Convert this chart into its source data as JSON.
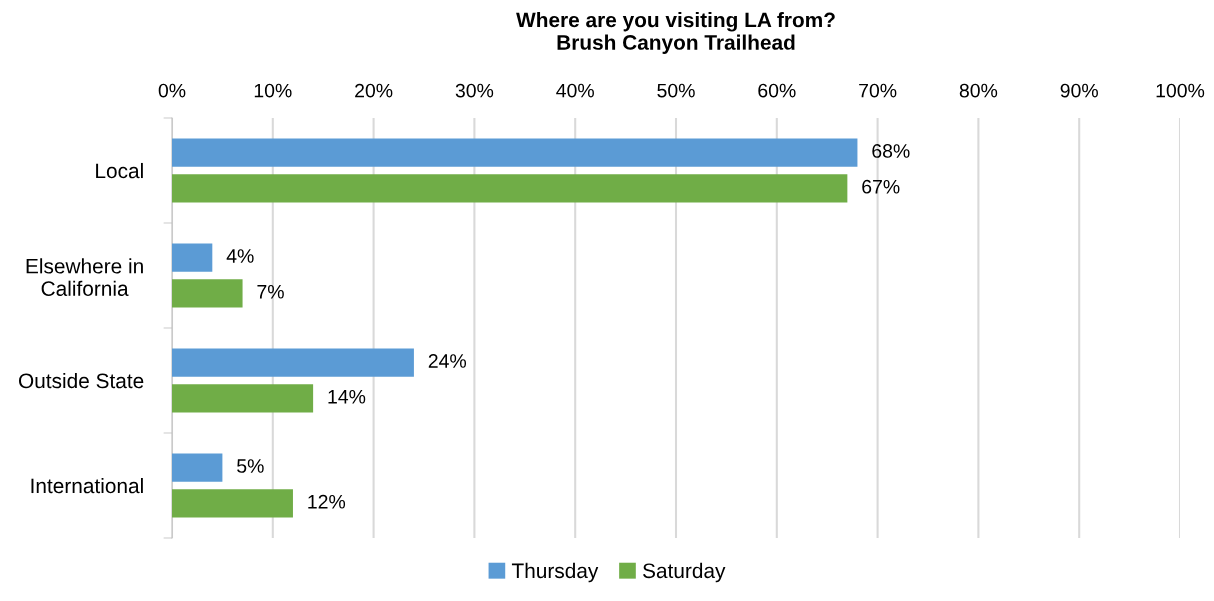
{
  "chart_data": {
    "type": "bar",
    "orientation": "horizontal",
    "title": "Where are you visiting LA from?",
    "subtitle": "Brush Canyon Trailhead",
    "categories": [
      "Local",
      "Elsewhere in California",
      "Outside State",
      "International"
    ],
    "series": [
      {
        "name": "Thursday",
        "color": "#5b9bd5",
        "values": [
          68,
          4,
          24,
          5
        ],
        "value_labels": [
          "68%",
          "4%",
          "24%",
          "5%"
        ]
      },
      {
        "name": "Saturday",
        "color": "#70ad47",
        "values": [
          67,
          7,
          14,
          12
        ],
        "value_labels": [
          "67%",
          "7%",
          "14%",
          "12%"
        ]
      }
    ],
    "xlim": [
      0,
      100
    ],
    "xticks": [
      {
        "value": 0,
        "label": "0%"
      },
      {
        "value": 10,
        "label": "10%"
      },
      {
        "value": 20,
        "label": "20%"
      },
      {
        "value": 30,
        "label": "30%"
      },
      {
        "value": 40,
        "label": "40%"
      },
      {
        "value": 50,
        "label": "50%"
      },
      {
        "value": 60,
        "label": "60%"
      },
      {
        "value": 70,
        "label": "70%"
      },
      {
        "value": 80,
        "label": "80%"
      },
      {
        "value": 90,
        "label": "90%"
      },
      {
        "value": 100,
        "label": "100%"
      }
    ],
    "grid": "x",
    "legend": "bottom"
  }
}
